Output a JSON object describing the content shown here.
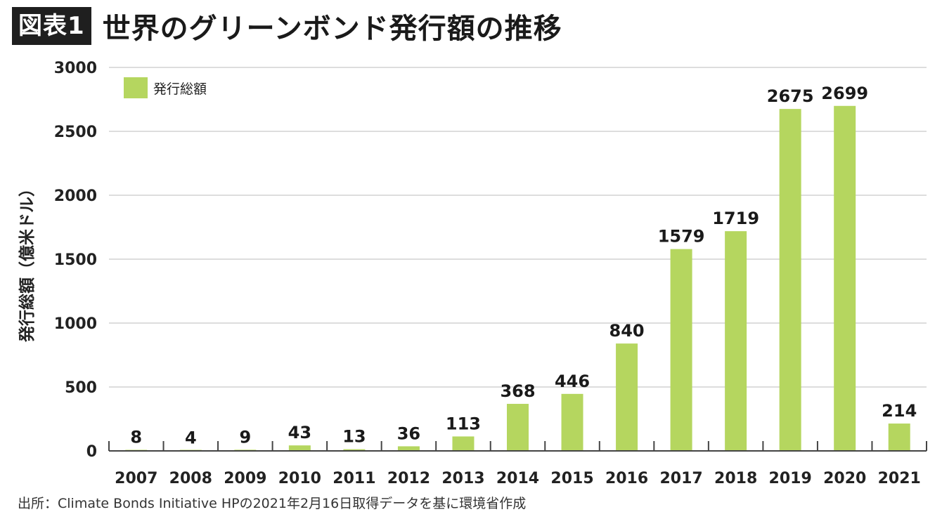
{
  "figure": {
    "label": "図表1",
    "title": "世界のグリーンボンド発行額の推移"
  },
  "source": "出所：Climate Bonds Initiative HPの2021年2月16日取得データを基に環境省作成",
  "colors": {
    "bar": "#b5d65f",
    "grid": "#dddddd",
    "axis": "#444444"
  },
  "chart_data": {
    "type": "bar",
    "categories": [
      "2007",
      "2008",
      "2009",
      "2010",
      "2011",
      "2012",
      "2013",
      "2014",
      "2015",
      "2016",
      "2017",
      "2018",
      "2019",
      "2020",
      "2021"
    ],
    "series": [
      {
        "name": "発行総額",
        "values": [
          8,
          4,
          9,
          43,
          13,
          36,
          113,
          368,
          446,
          840,
          1579,
          1719,
          2675,
          2699,
          214
        ]
      }
    ],
    "title": "",
    "xlabel": "",
    "ylabel": "発行総額（億米ドル）",
    "ylim": [
      0,
      3000
    ],
    "yticks": [
      0,
      500,
      1000,
      1500,
      2000,
      2500,
      3000
    ],
    "grid": true,
    "legend": "top-left"
  }
}
